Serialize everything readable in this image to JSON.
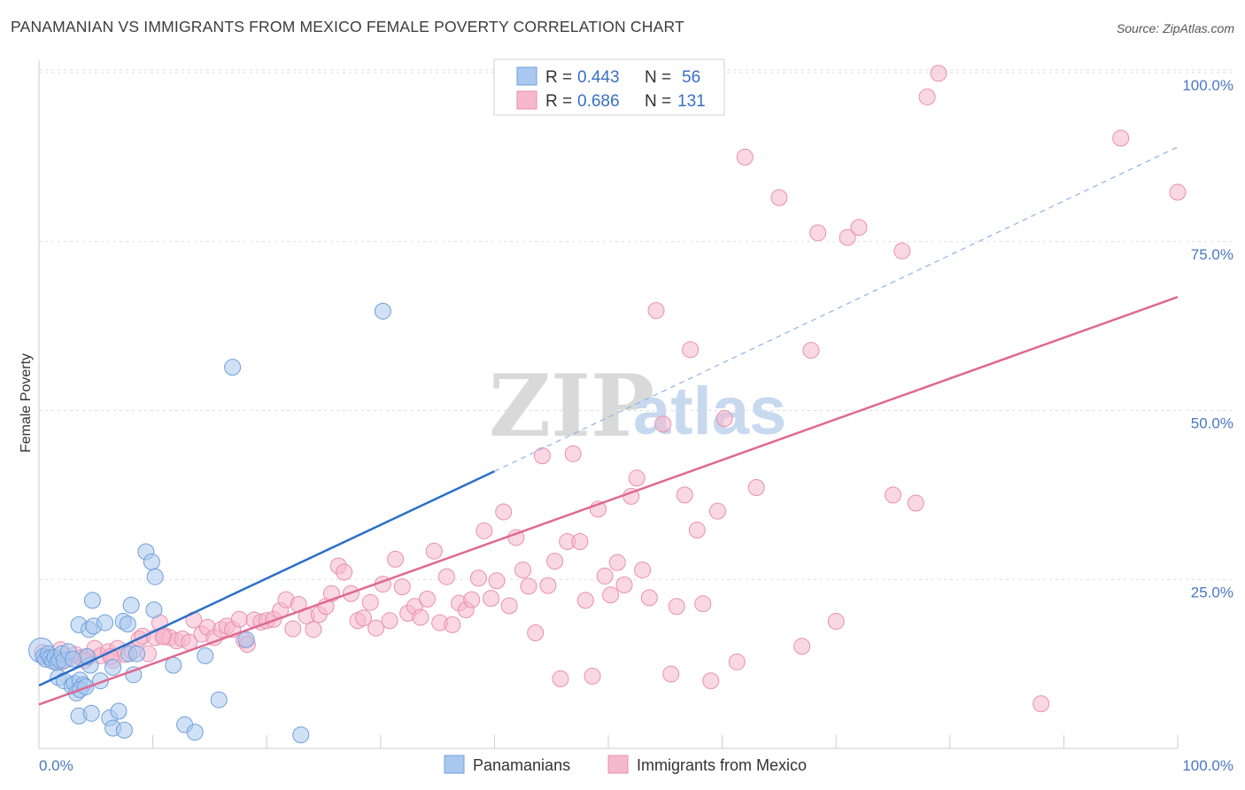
{
  "title": "PANAMANIAN VS IMMIGRANTS FROM MEXICO FEMALE POVERTY CORRELATION CHART",
  "source": "Source: ZipAtlas.com",
  "watermark": {
    "zip": "ZIP",
    "atlas": "atlas"
  },
  "colors": {
    "blue_fill": "#a9c8ef",
    "blue_stroke": "#6f9fdc",
    "blue_line": "#2a6fc9",
    "pink_fill": "#f6b8cc",
    "pink_stroke": "#e98fb0",
    "pink_line": "#e06890",
    "grid": "#dddddd",
    "tick_label": "#4a78c2"
  },
  "legend": {
    "rows": [
      {
        "r_label": "R =",
        "r_value": "0.443",
        "n_label": "N =",
        "n_value": "56",
        "series": "blue"
      },
      {
        "r_label": "R =",
        "r_value": "0.686",
        "n_label": "N =",
        "n_value": "131",
        "series": "pink"
      }
    ]
  },
  "bottom_legend": [
    {
      "label": "Panamanians",
      "series": "blue"
    },
    {
      "label": "Immigrants from Mexico",
      "series": "pink"
    }
  ],
  "chart_data": {
    "type": "scatter",
    "title": "PANAMANIAN VS IMMIGRANTS FROM MEXICO FEMALE POVERTY CORRELATION CHART",
    "xlabel": "",
    "ylabel": "Female Poverty",
    "xlim": [
      0,
      100
    ],
    "ylim": [
      0,
      100
    ],
    "x_tick_labels": [
      "0.0%",
      "100.0%"
    ],
    "y_ticks": [
      25,
      50,
      75,
      100
    ],
    "y_tick_labels": [
      "25.0%",
      "50.0%",
      "75.0%",
      "100.0%"
    ],
    "grid": true,
    "legend_position": "top-center",
    "series": [
      {
        "name": "Panamanians",
        "color": "#a9c8ef",
        "trend": {
          "x0": 0,
          "y0": 9.3,
          "x1": 40,
          "y1": 41,
          "dashed_to_x": 100,
          "dashed_to_y": 89
        },
        "points": [
          [
            0.2,
            14.5
          ],
          [
            0.4,
            13.6
          ],
          [
            0.6,
            13.2
          ],
          [
            0.8,
            14.0
          ],
          [
            1.0,
            13.4
          ],
          [
            1.2,
            12.9
          ],
          [
            1.4,
            13.5
          ],
          [
            1.6,
            12.7
          ],
          [
            1.8,
            13.1
          ],
          [
            2.0,
            14.0
          ],
          [
            2.2,
            13.0
          ],
          [
            2.6,
            14.3
          ],
          [
            1.7,
            10.5
          ],
          [
            2.2,
            10.0
          ],
          [
            2.9,
            9.2
          ],
          [
            3.1,
            9.6
          ],
          [
            3.3,
            8.2
          ],
          [
            3.6,
            10.1
          ],
          [
            3.9,
            9.4
          ],
          [
            3.6,
            8.7
          ],
          [
            4.1,
            9.1
          ],
          [
            3.5,
            18.3
          ],
          [
            4.4,
            17.6
          ],
          [
            4.7,
            21.9
          ],
          [
            4.8,
            18.1
          ],
          [
            4.5,
            12.3
          ],
          [
            5.4,
            10.0
          ],
          [
            5.8,
            18.6
          ],
          [
            6.5,
            12.0
          ],
          [
            7.4,
            18.8
          ],
          [
            7.8,
            18.4
          ],
          [
            7.9,
            14.0
          ],
          [
            8.1,
            21.2
          ],
          [
            8.3,
            10.9
          ],
          [
            8.6,
            14.0
          ],
          [
            9.4,
            29.1
          ],
          [
            9.9,
            27.6
          ],
          [
            10.2,
            25.4
          ],
          [
            10.1,
            20.5
          ],
          [
            11.8,
            12.3
          ],
          [
            3.5,
            4.8
          ],
          [
            4.6,
            5.2
          ],
          [
            6.2,
            4.5
          ],
          [
            6.5,
            3.0
          ],
          [
            7.0,
            5.5
          ],
          [
            7.5,
            2.7
          ],
          [
            12.8,
            3.5
          ],
          [
            13.7,
            2.4
          ],
          [
            14.6,
            13.7
          ],
          [
            15.8,
            7.2
          ],
          [
            17.0,
            56.4
          ],
          [
            18.2,
            16.1
          ],
          [
            23.0,
            2.0
          ],
          [
            30.2,
            64.7
          ],
          [
            4.2,
            13.6
          ],
          [
            3.0,
            13.2
          ]
        ]
      },
      {
        "name": "Immigrants from Mexico",
        "color": "#f6b8cc",
        "trend": {
          "x0": 0,
          "y0": 6.5,
          "x1": 100,
          "y1": 66.8
        },
        "points": [
          [
            0.3,
            14.2
          ],
          [
            0.8,
            13.5
          ],
          [
            1.4,
            13.0
          ],
          [
            1.9,
            14.6
          ],
          [
            2.5,
            13.2
          ],
          [
            3.2,
            13.9
          ],
          [
            3.7,
            13.4
          ],
          [
            4.3,
            13.5
          ],
          [
            4.9,
            14.8
          ],
          [
            5.4,
            13.7
          ],
          [
            6.1,
            14.3
          ],
          [
            6.5,
            13.0
          ],
          [
            6.9,
            14.8
          ],
          [
            7.6,
            13.9
          ],
          [
            8.2,
            14.3
          ],
          [
            8.8,
            16.2
          ],
          [
            9.1,
            16.6
          ],
          [
            9.6,
            14.0
          ],
          [
            10.2,
            16.4
          ],
          [
            10.6,
            18.6
          ],
          [
            11.0,
            16.7
          ],
          [
            11.5,
            16.4
          ],
          [
            12.1,
            15.9
          ],
          [
            12.6,
            16.2
          ],
          [
            13.2,
            15.7
          ],
          [
            13.6,
            19.0
          ],
          [
            14.3,
            16.9
          ],
          [
            14.8,
            17.9
          ],
          [
            15.4,
            16.4
          ],
          [
            16.0,
            17.6
          ],
          [
            16.5,
            18.1
          ],
          [
            17.0,
            17.6
          ],
          [
            17.6,
            19.1
          ],
          [
            18.0,
            16.0
          ],
          [
            18.3,
            15.4
          ],
          [
            18.9,
            19.0
          ],
          [
            19.5,
            18.7
          ],
          [
            20.0,
            18.9
          ],
          [
            20.6,
            19.1
          ],
          [
            21.2,
            20.4
          ],
          [
            21.7,
            22.0
          ],
          [
            22.3,
            17.7
          ],
          [
            22.8,
            21.3
          ],
          [
            23.5,
            19.6
          ],
          [
            24.1,
            17.6
          ],
          [
            24.6,
            19.8
          ],
          [
            25.2,
            21.0
          ],
          [
            25.7,
            22.9
          ],
          [
            26.3,
            27.0
          ],
          [
            26.8,
            26.1
          ],
          [
            27.4,
            22.9
          ],
          [
            28.0,
            18.9
          ],
          [
            28.5,
            19.3
          ],
          [
            29.1,
            21.6
          ],
          [
            29.6,
            17.8
          ],
          [
            30.2,
            24.3
          ],
          [
            30.8,
            18.9
          ],
          [
            31.3,
            28.0
          ],
          [
            31.9,
            23.9
          ],
          [
            32.4,
            20.0
          ],
          [
            33.0,
            21.0
          ],
          [
            33.5,
            19.4
          ],
          [
            34.1,
            22.1
          ],
          [
            34.7,
            29.2
          ],
          [
            35.2,
            18.6
          ],
          [
            35.8,
            25.4
          ],
          [
            36.3,
            18.3
          ],
          [
            36.9,
            21.5
          ],
          [
            37.5,
            20.5
          ],
          [
            38.0,
            22.0
          ],
          [
            38.6,
            25.2
          ],
          [
            39.1,
            32.2
          ],
          [
            39.7,
            22.2
          ],
          [
            40.2,
            24.8
          ],
          [
            40.8,
            35.0
          ],
          [
            41.3,
            21.1
          ],
          [
            41.9,
            31.2
          ],
          [
            42.5,
            26.4
          ],
          [
            43.0,
            24.0
          ],
          [
            43.6,
            17.1
          ],
          [
            44.2,
            43.3
          ],
          [
            44.7,
            24.1
          ],
          [
            45.3,
            27.7
          ],
          [
            45.8,
            10.3
          ],
          [
            46.4,
            30.6
          ],
          [
            46.9,
            43.6
          ],
          [
            47.5,
            30.6
          ],
          [
            48.0,
            21.9
          ],
          [
            48.6,
            10.7
          ],
          [
            49.1,
            35.4
          ],
          [
            49.7,
            25.5
          ],
          [
            50.2,
            22.7
          ],
          [
            50.8,
            27.5
          ],
          [
            51.4,
            24.2
          ],
          [
            52.0,
            37.3
          ],
          [
            52.5,
            40.0
          ],
          [
            53.0,
            26.4
          ],
          [
            53.6,
            22.3
          ],
          [
            54.2,
            64.8
          ],
          [
            54.8,
            48.0
          ],
          [
            55.5,
            11.0
          ],
          [
            56.0,
            21.0
          ],
          [
            56.7,
            37.5
          ],
          [
            57.2,
            59.0
          ],
          [
            57.8,
            32.3
          ],
          [
            58.3,
            21.4
          ],
          [
            59.0,
            10.0
          ],
          [
            59.6,
            35.1
          ],
          [
            60.2,
            48.8
          ],
          [
            61.3,
            12.8
          ],
          [
            62.0,
            87.5
          ],
          [
            63.0,
            38.6
          ],
          [
            65.0,
            81.5
          ],
          [
            67.0,
            15.1
          ],
          [
            67.8,
            58.9
          ],
          [
            68.4,
            76.3
          ],
          [
            70.0,
            18.8
          ],
          [
            71.0,
            75.6
          ],
          [
            72.0,
            77.1
          ],
          [
            75.0,
            37.5
          ],
          [
            75.8,
            73.6
          ],
          [
            77.0,
            36.3
          ],
          [
            78.0,
            96.4
          ],
          [
            79.0,
            99.9
          ],
          [
            88.0,
            6.6
          ],
          [
            95.0,
            90.3
          ],
          [
            100.0,
            82.3
          ],
          [
            2.0,
            12.8
          ],
          [
            4.0,
            13.0
          ],
          [
            6.3,
            13.6
          ],
          [
            10.9,
            16.5
          ]
        ]
      }
    ]
  }
}
